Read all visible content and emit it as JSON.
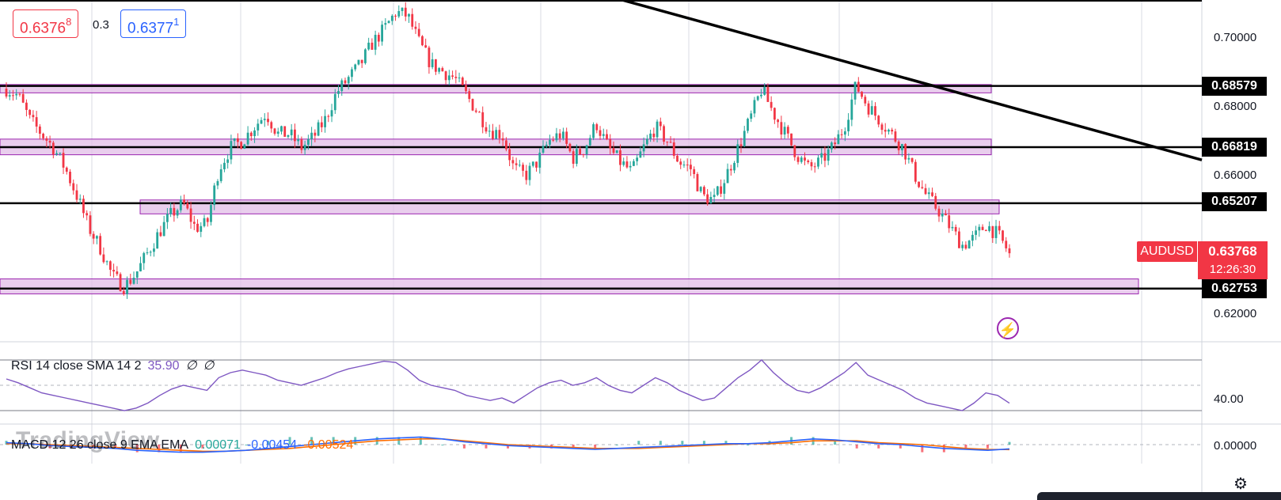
{
  "header": {
    "bid_price": "0.6376",
    "bid_price_small": "8",
    "spread": "0.3",
    "ask_price": "0.6377",
    "ask_price_small": "1"
  },
  "symbol": "AUDUSD",
  "current_price": "0.63768",
  "countdown": "12:26:30",
  "watermark": "TradingView",
  "colors": {
    "up": "#26a69a",
    "down": "#f23645",
    "zone_fill": "#e1bee7",
    "zone_border": "#9c27b0",
    "rsi_line": "#7e57c2",
    "macd_line": "#2962ff",
    "signal_line": "#ff6d00"
  },
  "icons": [
    "lightning-icon",
    "settings-icon"
  ],
  "chart_data": {
    "type": "candlestick",
    "symbol": "AUDUSD",
    "y_axis_ticks": [
      "0.70000",
      "0.68000",
      "0.66000",
      "0.62000"
    ],
    "ylim": [
      0.6145,
      0.7105
    ],
    "horizontal_levels": [
      "0.68579",
      "0.66819",
      "0.65207",
      "0.62753"
    ],
    "support_resistance_zones": [
      {
        "low": 0.6838,
        "high": 0.6862
      },
      {
        "low": 0.666,
        "high": 0.6705
      },
      {
        "low": 0.649,
        "high": 0.653
      },
      {
        "low": 0.626,
        "high": 0.6303
      }
    ],
    "trendline": {
      "from_price": 0.7159,
      "to_price": 0.6645
    },
    "close_path": [
      0.685,
      0.683,
      0.676,
      0.672,
      0.668,
      0.662,
      0.654,
      0.645,
      0.639,
      0.631,
      0.628,
      0.632,
      0.638,
      0.644,
      0.649,
      0.652,
      0.645,
      0.646,
      0.662,
      0.668,
      0.67,
      0.674,
      0.678,
      0.672,
      0.672,
      0.668,
      0.671,
      0.676,
      0.684,
      0.688,
      0.692,
      0.698,
      0.702,
      0.707,
      0.706,
      0.698,
      0.692,
      0.69,
      0.688,
      0.683,
      0.678,
      0.673,
      0.672,
      0.662,
      0.66,
      0.664,
      0.67,
      0.672,
      0.665,
      0.668,
      0.675,
      0.668,
      0.664,
      0.661,
      0.668,
      0.674,
      0.67,
      0.664,
      0.662,
      0.654,
      0.653,
      0.66,
      0.668,
      0.676,
      0.685,
      0.678,
      0.672,
      0.666,
      0.662,
      0.664,
      0.668,
      0.674,
      0.686,
      0.68,
      0.676,
      0.672,
      0.668,
      0.66,
      0.654,
      0.65,
      0.645,
      0.64,
      0.642,
      0.646,
      0.643,
      0.6377
    ],
    "rsi": {
      "label": "RSI 14 close SMA 14 2",
      "value": "35.90",
      "na1": "∅",
      "na2": "∅",
      "tick": "40.00",
      "series": [
        55,
        52,
        48,
        44,
        42,
        40,
        38,
        36,
        34,
        32,
        30,
        32,
        36,
        42,
        47,
        50,
        48,
        46,
        56,
        60,
        62,
        60,
        58,
        54,
        52,
        50,
        53,
        56,
        60,
        63,
        65,
        67,
        69,
        68,
        62,
        54,
        50,
        48,
        46,
        42,
        40,
        38,
        40,
        36,
        42,
        48,
        52,
        54,
        50,
        52,
        56,
        50,
        46,
        44,
        50,
        56,
        52,
        46,
        42,
        38,
        40,
        48,
        56,
        62,
        70,
        60,
        52,
        46,
        44,
        48,
        54,
        60,
        68,
        58,
        54,
        50,
        46,
        40,
        36,
        34,
        32,
        30,
        36,
        44,
        42,
        35.9
      ]
    },
    "macd": {
      "label": "MACD 12 26 close 9 EMA EMA",
      "hist": "0.00071",
      "macd": "-0.00454",
      "signal": "-0.00524",
      "tick": "0.00000",
      "macd_series": [
        0.002,
        0.001,
        -0.001,
        -0.002,
        -0.003,
        -0.004,
        -0.006,
        -0.007,
        -0.008,
        -0.008,
        -0.007,
        -0.006,
        -0.004,
        -0.002,
        0.0,
        0.002,
        0.004,
        0.006,
        0.007,
        0.008,
        0.006,
        0.003,
        0.001,
        -0.001,
        -0.002,
        -0.003,
        -0.004,
        -0.005,
        -0.004,
        -0.003,
        -0.002,
        -0.001,
        0.0,
        0.001,
        0.001,
        0.002,
        0.004,
        0.006,
        0.005,
        0.003,
        0.001,
        0.0,
        -0.002,
        -0.004,
        -0.005,
        -0.006,
        -0.00454
      ],
      "signal_series": [
        0.001,
        0.001,
        0.0,
        -0.001,
        -0.002,
        -0.003,
        -0.004,
        -0.005,
        -0.006,
        -0.007,
        -0.007,
        -0.006,
        -0.005,
        -0.004,
        -0.002,
        0.0,
        0.002,
        0.004,
        0.005,
        0.006,
        0.006,
        0.004,
        0.002,
        0.0,
        -0.001,
        -0.002,
        -0.003,
        -0.004,
        -0.004,
        -0.004,
        -0.003,
        -0.002,
        -0.001,
        0.0,
        0.001,
        0.001,
        0.002,
        0.004,
        0.004,
        0.004,
        0.002,
        0.001,
        0.0,
        -0.002,
        -0.004,
        -0.005,
        -0.00524
      ]
    }
  }
}
